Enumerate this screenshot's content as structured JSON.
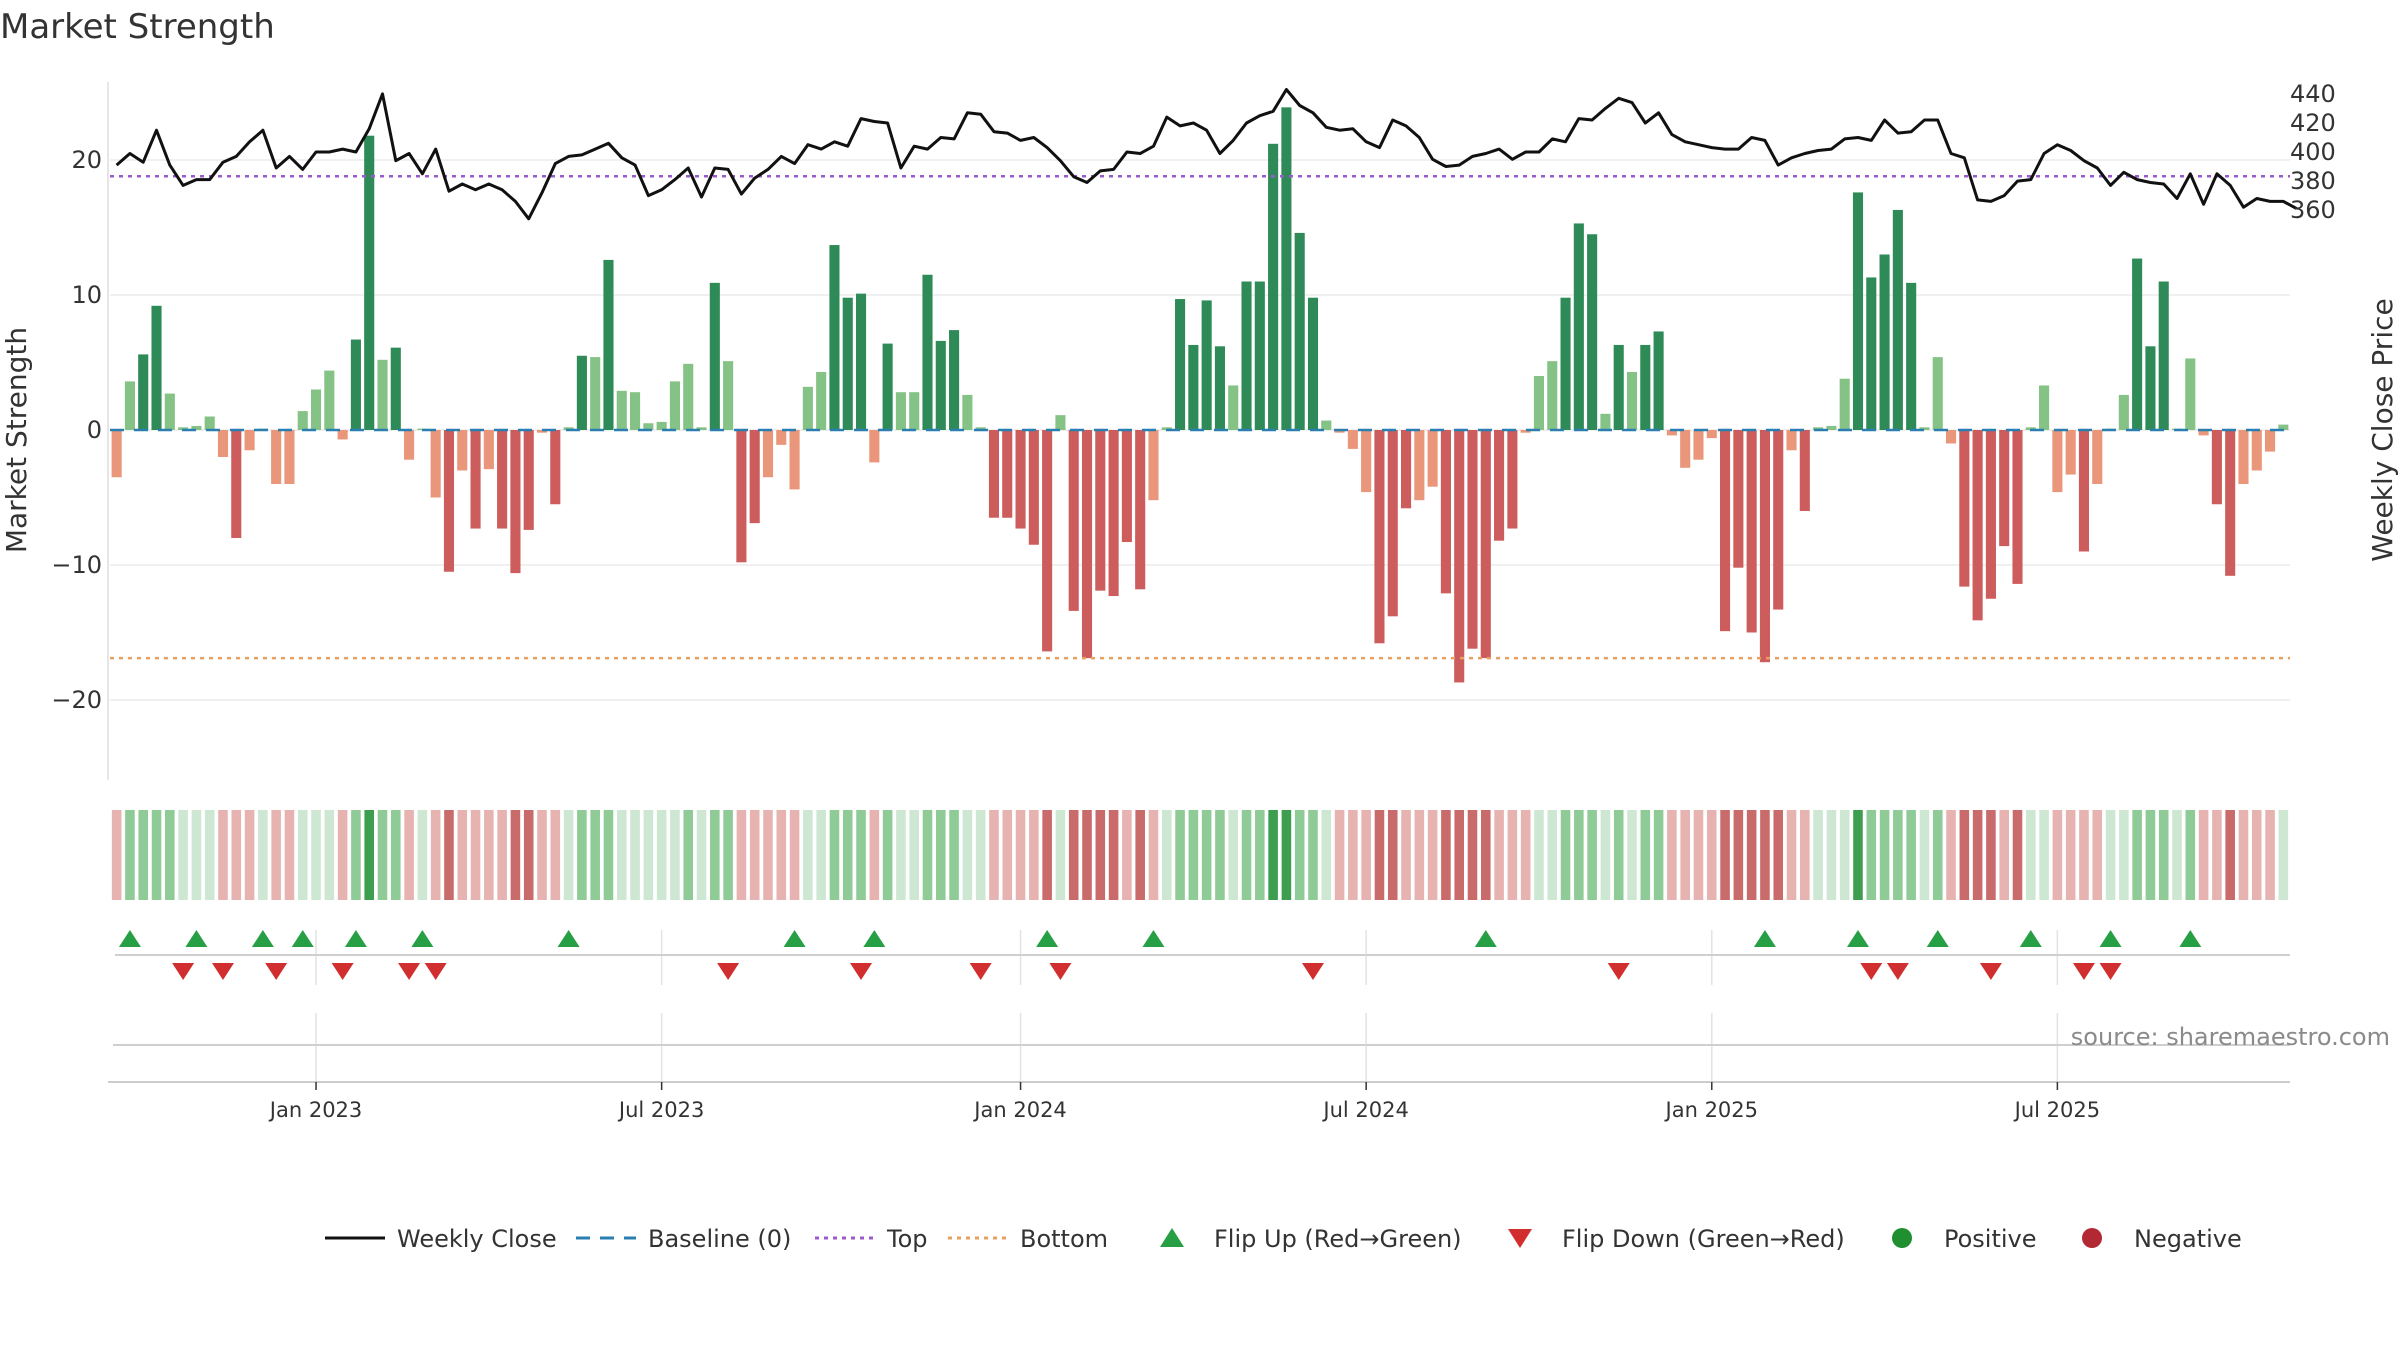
{
  "chart_data": {
    "type": "bar+line",
    "title": "Market Strength",
    "ylabel_left": "Market Strength",
    "ylabel_right": "Weekly Close Price",
    "ylim_left": [
      -26,
      26
    ],
    "ylim_right": [
      358,
      446
    ],
    "left_ticks": [
      {
        "v": 20,
        "label": "20"
      },
      {
        "v": 10,
        "label": "10"
      },
      {
        "v": 0,
        "label": "0"
      },
      {
        "v": -10,
        "label": "−10"
      },
      {
        "v": -20,
        "label": "−20"
      }
    ],
    "right_ticks": [
      {
        "v": 440,
        "label": "440"
      },
      {
        "v": 420,
        "label": "420"
      },
      {
        "v": 400,
        "label": "400"
      },
      {
        "v": 380,
        "label": "380"
      },
      {
        "v": 360,
        "label": "360"
      }
    ],
    "x_ticks": [
      {
        "i": 15,
        "label": "Jan 2023"
      },
      {
        "i": 41,
        "label": "Jul 2023"
      },
      {
        "i": 68,
        "label": "Jan 2024"
      },
      {
        "i": 94,
        "label": "Jul 2024"
      },
      {
        "i": 120,
        "label": "Jan 2025"
      },
      {
        "i": 146,
        "label": "Jul 2025"
      }
    ],
    "top_level": 18.8,
    "bottom_level": -16.9,
    "baseline": 0,
    "strength": [
      -3.5,
      3.6,
      5.6,
      9.2,
      2.7,
      0.2,
      0.3,
      1.0,
      -2.0,
      -8.0,
      -1.5,
      0.1,
      -4.0,
      -4.0,
      1.4,
      3.0,
      4.4,
      -0.7,
      6.7,
      21.8,
      5.2,
      6.1,
      -2.2,
      0.1,
      -5.0,
      -10.5,
      -3.0,
      -7.3,
      -2.9,
      -7.3,
      -10.6,
      -7.4,
      -0.2,
      -5.5,
      0.2,
      5.5,
      5.4,
      12.6,
      2.9,
      2.8,
      0.5,
      0.6,
      3.6,
      4.9,
      0.2,
      10.9,
      5.1,
      -9.8,
      -6.9,
      -3.5,
      -1.1,
      -4.4,
      3.2,
      4.3,
      13.7,
      9.8,
      10.1,
      -2.4,
      6.4,
      2.8,
      2.8,
      11.5,
      6.6,
      7.4,
      2.6,
      0.2,
      -6.5,
      -6.5,
      -7.3,
      -8.5,
      -16.4,
      1.1,
      -13.4,
      -16.9,
      -11.9,
      -12.3,
      -8.3,
      -11.8,
      -5.2,
      0.2,
      9.7,
      6.3,
      9.6,
      6.2,
      3.3,
      11.0,
      11.0,
      21.2,
      23.9,
      14.6,
      9.8,
      0.7,
      -0.2,
      -1.4,
      -4.6,
      -15.8,
      -13.8,
      -5.8,
      -5.2,
      -4.2,
      -12.1,
      -18.7,
      -16.2,
      -16.9,
      -8.2,
      -7.3,
      -0.2,
      4.0,
      5.1,
      9.8,
      15.3,
      14.5,
      1.2,
      6.3,
      4.3,
      6.3,
      7.3,
      -0.4,
      -2.8,
      -2.2,
      -0.6,
      -14.9,
      -10.2,
      -15.0,
      -17.2,
      -13.3,
      -1.5,
      -6.0,
      0.2,
      0.3,
      3.8,
      17.6,
      11.3,
      13.0,
      16.3,
      10.9,
      0.2,
      5.4,
      -1.0,
      -11.6,
      -14.1,
      -12.5,
      -8.6,
      -11.4,
      0.2,
      3.3,
      -4.6,
      -3.3,
      -9.0,
      -4.0,
      0.1,
      2.6,
      12.7,
      6.2,
      11.0,
      0.1,
      5.3,
      -0.4,
      -5.5,
      -10.8,
      -4.0,
      -3.0,
      -1.6,
      0.4
    ],
    "weekly_close": [
      391,
      399,
      393,
      415,
      391,
      377,
      381,
      381,
      393,
      397,
      407,
      415,
      389,
      397,
      388,
      400,
      400,
      402,
      400,
      416,
      440,
      394,
      399,
      385,
      402,
      373,
      378,
      374,
      378,
      374,
      366,
      354,
      372,
      392,
      397,
      398,
      402,
      406,
      396,
      391,
      370,
      374,
      381,
      389,
      369,
      389,
      388,
      371,
      382,
      388,
      397,
      392,
      405,
      402,
      407,
      404,
      423,
      421,
      420,
      389,
      404,
      402,
      410,
      409,
      427,
      426,
      414,
      413,
      408,
      410,
      403,
      394,
      383,
      379,
      387,
      388,
      400,
      399,
      404,
      424,
      418,
      420,
      415,
      399,
      408,
      420,
      425,
      428,
      443,
      432,
      427,
      417,
      415,
      416,
      407,
      403,
      422,
      418,
      410,
      395,
      390,
      391,
      397,
      399,
      402,
      395,
      400,
      400,
      409,
      407,
      423,
      422,
      430,
      437,
      434,
      420,
      427,
      412,
      407,
      405,
      403,
      402,
      402,
      410,
      408,
      391,
      396,
      399,
      401,
      402,
      409,
      410,
      408,
      422,
      413,
      414,
      422,
      422,
      399,
      396,
      367,
      366,
      370,
      380,
      381,
      399,
      405,
      401,
      394,
      389,
      377,
      386,
      381,
      379,
      378,
      368,
      385,
      364,
      385,
      377,
      362,
      368,
      366,
      366,
      361
    ],
    "heat_levels": [
      -1,
      2,
      2,
      2,
      2,
      1,
      1,
      1,
      -1,
      -1,
      -1,
      1,
      -1,
      -1,
      1,
      1,
      1,
      -1,
      2,
      3,
      2,
      2,
      -1,
      1,
      -1,
      -2,
      -1,
      -1,
      -1,
      -1,
      -2,
      -2,
      -1,
      -1,
      1,
      2,
      2,
      2,
      1,
      1,
      1,
      1,
      1,
      2,
      1,
      2,
      2,
      -1,
      -1,
      -1,
      -1,
      -1,
      1,
      1,
      2,
      2,
      2,
      -1,
      2,
      1,
      1,
      2,
      2,
      2,
      1,
      1,
      -1,
      -1,
      -1,
      -1,
      -2,
      1,
      -2,
      -2,
      -2,
      -2,
      -1,
      -2,
      -1,
      1,
      2,
      2,
      2,
      2,
      1,
      2,
      2,
      3,
      3,
      2,
      2,
      1,
      -1,
      -1,
      -1,
      -2,
      -2,
      -1,
      -1,
      -1,
      -2,
      -2,
      -2,
      -2,
      -1,
      -1,
      -1,
      1,
      1,
      2,
      2,
      2,
      1,
      2,
      1,
      2,
      2,
      -1,
      -1,
      -1,
      -1,
      -2,
      -2,
      -2,
      -2,
      -2,
      -1,
      -1,
      1,
      1,
      1,
      3,
      2,
      2,
      2,
      2,
      1,
      2,
      -1,
      -2,
      -2,
      -2,
      -1,
      -2,
      1,
      1,
      -1,
      -1,
      -1,
      -1,
      1,
      1,
      2,
      2,
      2,
      1,
      2,
      -1,
      -1,
      -2,
      -1,
      -1,
      -1,
      1
    ],
    "flip_up_weeks": [
      1,
      6,
      11,
      14,
      18,
      23,
      34,
      51,
      57,
      70,
      78,
      103,
      124,
      131,
      137,
      144,
      150,
      156
    ],
    "flip_down_weeks": [
      5,
      8,
      12,
      17,
      22,
      24,
      46,
      56,
      65,
      71,
      90,
      113,
      132,
      134,
      141,
      148,
      150
    ],
    "legend": [
      {
        "type": "line",
        "label": "Weekly Close",
        "color": "#111111"
      },
      {
        "type": "baseline",
        "label": "Baseline (0)",
        "color": "#2a7fb0"
      },
      {
        "type": "top",
        "label": "Top",
        "color": "#9b59d0"
      },
      {
        "type": "bottom",
        "label": "Bottom",
        "color": "#e8a060"
      },
      {
        "type": "up",
        "label": "Flip Up (Red→Green)",
        "color": "#27a045"
      },
      {
        "type": "down",
        "label": "Flip Down (Green→Red)",
        "color": "#d12f2f"
      },
      {
        "type": "pos",
        "label": "Positive",
        "color": "#1f8f2f"
      },
      {
        "type": "neg",
        "label": "Negative",
        "color": "#b22833"
      }
    ],
    "source": "source: sharemaestro.com"
  },
  "colors": {
    "pos_strong": "#2e8b57",
    "pos_weak": "#85c285",
    "neg_strong": "#cd5c5c",
    "neg_weak": "#e9967a",
    "line": "#111111"
  }
}
